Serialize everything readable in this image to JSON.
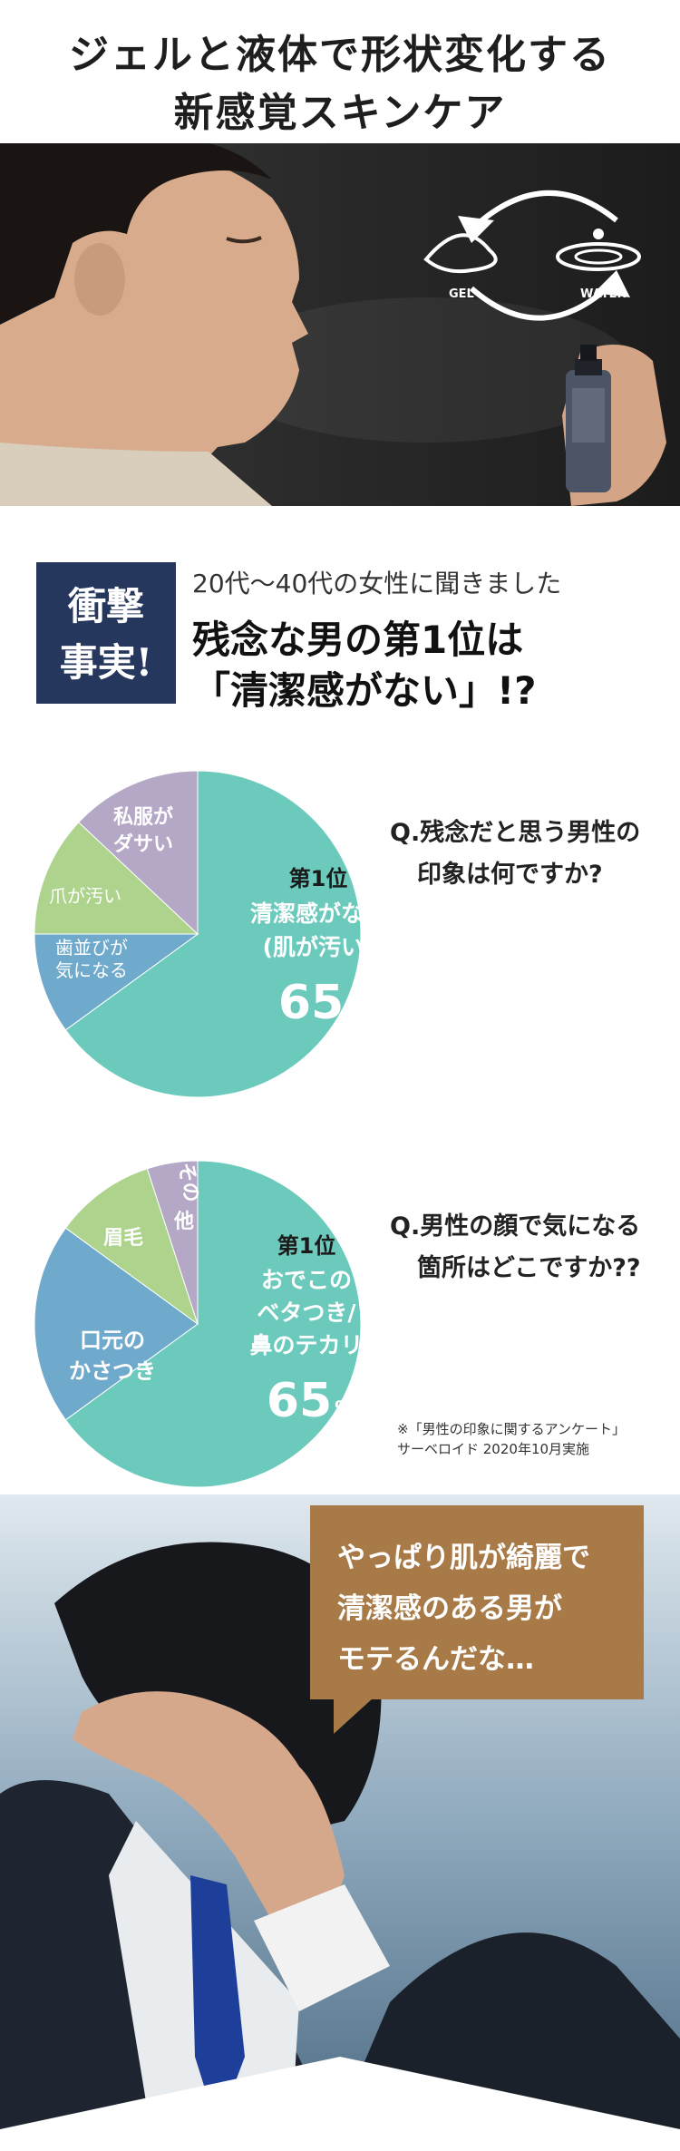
{
  "header": {
    "line1": "ジェルと液体で形状変化する",
    "line2": "新感覚スキンケア"
  },
  "hero": {
    "gel_label": "GEL",
    "water_label": "WATER"
  },
  "fact": {
    "badge_line1": "衝撃",
    "badge_line2": "事実!",
    "subtitle": "20代〜40代の女性に聞きました",
    "main_line1": "残念な男の第1位は",
    "main_line2": "「清潔感がない」!?"
  },
  "survey1": {
    "question_line1": "Q.残念だと思う男性の",
    "question_line2": "印象は何ですか?",
    "rank": "第1位",
    "top_line1": "清潔感がない",
    "top_line2": "(肌が汚い)",
    "percent": "65",
    "percent_unit": "%",
    "labels": {
      "teeth_line1": "歯並びが",
      "teeth_line2": "気になる",
      "nails": "爪が汚い",
      "clothes_line1": "私服が",
      "clothes_line2": "ダサい"
    }
  },
  "survey2": {
    "question_line1": "Q.男性の顔で気になる",
    "question_line2": "箇所はどこですか??",
    "rank": "第1位",
    "top_line1": "おでこの",
    "top_line2": "ベタつき/",
    "top_line3": "鼻のテカリ",
    "percent": "65",
    "percent_unit": "%",
    "labels": {
      "mouth_line1": "口元の",
      "mouth_line2": "かさつき",
      "eyebrows": "眉毛",
      "other_line1": "その",
      "other_line2": "他"
    }
  },
  "source_note": {
    "line1": "※「男性の印象に関するアンケート」",
    "line2": "サーベロイド 2020年10月実施"
  },
  "bubble": {
    "line1": "やっぱり肌が綺麗で",
    "line2": "清潔感のある男が",
    "line3": "モテるんだな…"
  },
  "chart_data": [
    {
      "type": "pie",
      "slices": [
        {
          "label": "清潔感がない(肌が汚い)",
          "value": 65,
          "color": "#6ccabd"
        },
        {
          "label": "歯並びが気になる",
          "value": 10,
          "color": "#6fa9cb"
        },
        {
          "label": "爪が汚い",
          "value": 12,
          "color": "#add38d"
        },
        {
          "label": "私服がダサい",
          "value": 13,
          "color": "#b4a8c6"
        }
      ]
    },
    {
      "type": "pie",
      "slices": [
        {
          "label": "おでこのベタつき/鼻のテカリ",
          "value": 65,
          "color": "#6ccabd"
        },
        {
          "label": "口元のかさつき",
          "value": 20,
          "color": "#6fa9cb"
        },
        {
          "label": "眉毛",
          "value": 10,
          "color": "#add38d"
        },
        {
          "label": "その他",
          "value": 5,
          "color": "#b4a8c6"
        }
      ]
    }
  ]
}
